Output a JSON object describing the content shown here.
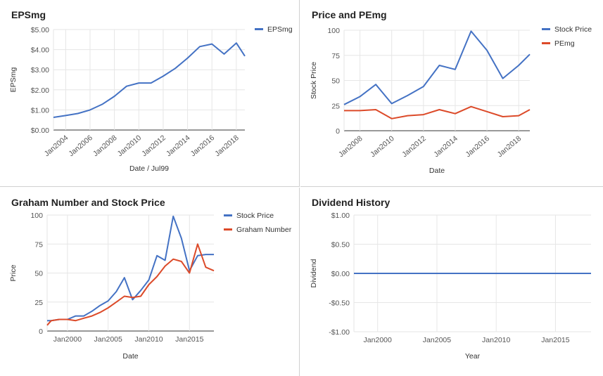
{
  "colors": {
    "blue": "#4472c4",
    "red": "#dc4a29",
    "grid": "#e6e6e6",
    "axis": "#333333",
    "tick": "#555555"
  },
  "chart_data": [
    {
      "type": "line",
      "title": "EPSmg",
      "xlabel": "Date / Jul99",
      "ylabel": "EPSmg",
      "x": [
        2003.0,
        2004.0,
        2005.0,
        2006.0,
        2007.0,
        2008.0,
        2009.0,
        2010.0,
        2011.0,
        2012.0,
        2013.0,
        2014.0,
        2015.0,
        2016.0,
        2017.0,
        2018.0,
        2018.7
      ],
      "series": [
        {
          "name": "EPSmg",
          "color": "#4472c4",
          "values": [
            0.63,
            0.72,
            0.82,
            1.0,
            1.28,
            1.68,
            2.18,
            2.34,
            2.34,
            2.68,
            3.07,
            3.58,
            4.15,
            4.28,
            3.78,
            4.33,
            3.68
          ]
        }
      ],
      "xlim": [
        2003,
        2018.7
      ],
      "ylim": [
        0,
        5
      ],
      "yticks": [
        0,
        1,
        2,
        3,
        4,
        5
      ],
      "ytick_labels": [
        "$0.00",
        "$1.00",
        "$2.00",
        "$3.00",
        "$4.00",
        "$5.00"
      ],
      "xticks": [
        2004,
        2006,
        2008,
        2010,
        2012,
        2014,
        2016,
        2018
      ],
      "xtick_labels": [
        "Jan2004",
        "Jan2006",
        "Jan2008",
        "Jan2010",
        "Jan2012",
        "Jan2014",
        "Jan2016",
        "Jan2018"
      ],
      "legend": "top-right"
    },
    {
      "type": "line",
      "title": "Price and PEmg",
      "xlabel": "Date",
      "ylabel": "Stock Price",
      "x": [
        2007.0,
        2008.0,
        2009.0,
        2010.0,
        2011.0,
        2012.0,
        2013.0,
        2014.0,
        2015.0,
        2016.0,
        2017.0,
        2018.0,
        2018.7
      ],
      "series": [
        {
          "name": "Stock Price",
          "color": "#4472c4",
          "values": [
            26,
            34,
            46,
            27,
            35,
            44,
            65,
            61,
            99,
            80,
            52,
            65,
            76
          ]
        },
        {
          "name": "PEmg",
          "color": "#dc4a29",
          "values": [
            20,
            20,
            21,
            12,
            15,
            16,
            21,
            17,
            24,
            19,
            14,
            15,
            21
          ]
        }
      ],
      "xlim": [
        2007,
        2018.7
      ],
      "ylim": [
        0,
        100
      ],
      "yticks": [
        0,
        25,
        50,
        75,
        100
      ],
      "ytick_labels": [
        "0",
        "25",
        "50",
        "75",
        "100"
      ],
      "xticks": [
        2008,
        2010,
        2012,
        2014,
        2016,
        2018
      ],
      "xtick_labels": [
        "Jan2008",
        "Jan2010",
        "Jan2012",
        "Jan2014",
        "Jan2016",
        "Jan2018"
      ],
      "legend": "top-right"
    },
    {
      "type": "line",
      "title": "Graham Number and Stock Price",
      "xlabel": "Date",
      "ylabel": "Price",
      "x": [
        1997.5,
        1998.0,
        1999.0,
        2000.0,
        2001.0,
        2002.0,
        2003.0,
        2004.0,
        2005.0,
        2006.0,
        2007.0,
        2008.0,
        2009.0,
        2010.0,
        2011.0,
        2012.0,
        2013.0,
        2014.0,
        2015.0,
        2016.0,
        2017.0,
        2018.0
      ],
      "series": [
        {
          "name": "Stock Price",
          "color": "#4472c4",
          "values": [
            9,
            9,
            10,
            10,
            13,
            13,
            17,
            22,
            26,
            34,
            46,
            27,
            35,
            44,
            65,
            61,
            99,
            80,
            52,
            65,
            66,
            66
          ]
        },
        {
          "name": "Graham Number",
          "color": "#dc4a29",
          "values": [
            5,
            9,
            10,
            10,
            9,
            11,
            13,
            16,
            20,
            25,
            30,
            29,
            30,
            40,
            47,
            56,
            62,
            60,
            50,
            75,
            55,
            52
          ]
        }
      ],
      "xlim": [
        1997.5,
        2018.0
      ],
      "ylim": [
        0,
        100
      ],
      "yticks": [
        0,
        25,
        50,
        75,
        100
      ],
      "ytick_labels": [
        "0",
        "25",
        "50",
        "75",
        "100"
      ],
      "xticks": [
        2000,
        2005,
        2010,
        2015
      ],
      "xtick_labels": [
        "Jan2000",
        "Jan2005",
        "Jan2010",
        "Jan2015"
      ],
      "legend": "top-right"
    },
    {
      "type": "line",
      "title": "Dividend History",
      "xlabel": "Year",
      "ylabel": "Dividend",
      "x": [
        1998.0,
        2018.0
      ],
      "series": [
        {
          "name": "Dividend",
          "color": "#4472c4",
          "values": [
            0,
            0
          ]
        }
      ],
      "xlim": [
        1998,
        2018
      ],
      "ylim": [
        -1,
        1
      ],
      "yticks": [
        -1,
        -0.5,
        0,
        0.5,
        1
      ],
      "ytick_labels": [
        "-$1.00",
        "-$0.50",
        "$0.00",
        "$0.50",
        "$1.00"
      ],
      "xticks": [
        2000,
        2005,
        2010,
        2015
      ],
      "xtick_labels": [
        "Jan2000",
        "Jan2005",
        "Jan2010",
        "Jan2015"
      ],
      "legend": "none"
    }
  ]
}
